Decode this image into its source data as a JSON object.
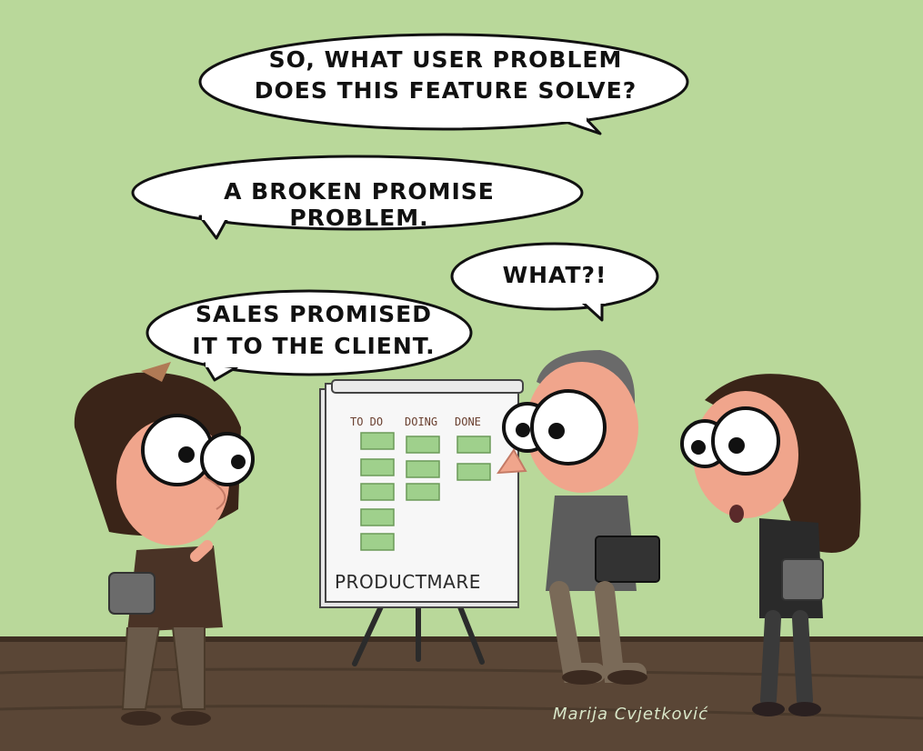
{
  "bubbles": {
    "question_line1": "SO, WHAT USER PROBLEM",
    "question_line2": "DOES THIS FEATURE SOLVE?",
    "answer": "A BROKEN PROMISE PROBLEM.",
    "reaction": "WHAT?!",
    "sales_line1": "SALES PROMISED",
    "sales_line2": "IT TO THE CLIENT."
  },
  "board": {
    "title": "PRODUCTMARE",
    "columns": [
      "TO DO",
      "DOING",
      "DONE"
    ],
    "cards_per_column": [
      5,
      3,
      2
    ]
  },
  "signature": "Marija Cvjetković",
  "colors": {
    "wall": "#b9d89a",
    "floor": "#5a4636",
    "sticky_note": "#9fd08c",
    "skin": "#f0a58c",
    "bubble_fill": "#ffffff"
  }
}
